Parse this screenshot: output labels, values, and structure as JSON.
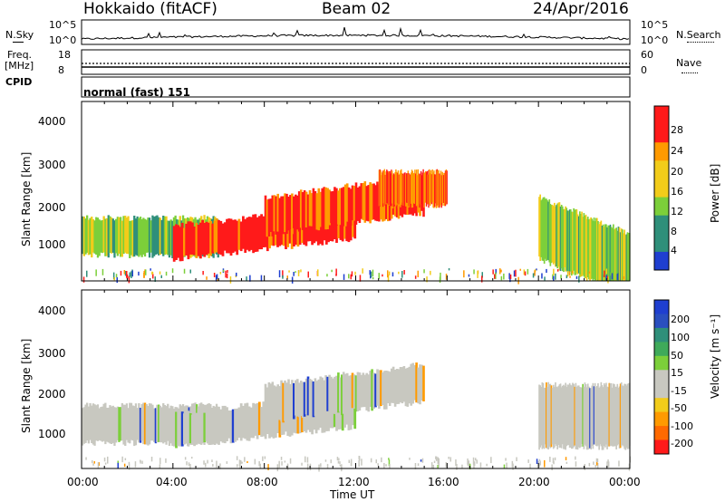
{
  "header": {
    "site_title": "Hokkaido (fitACF)",
    "beam_label": "Beam 02",
    "date_label": "24/Apr/2016"
  },
  "noise_panel": {
    "left_label": "N.Sky",
    "right_label": "N.Search",
    "left_ticks": [
      "10^5",
      "10^0"
    ],
    "right_ticks": [
      "10^5",
      "10^0"
    ]
  },
  "freq_panel": {
    "left_label_1": "Freq.",
    "left_label_2": "[MHz]",
    "right_label": "Nave",
    "left_ticks": [
      "18",
      "8"
    ],
    "right_ticks": [
      "60",
      "0"
    ]
  },
  "cpid_panel": {
    "label": "CPID",
    "text": "normal (fast) 151"
  },
  "colors": {
    "red": "#ff1a1a",
    "orange": "#ff9a00",
    "yellow": "#f2cc1a",
    "green": "#7ccf3a",
    "teal": "#2f8f7a",
    "blue": "#1f3fd0",
    "grey": "#c8c8c0"
  },
  "chart_data": [
    {
      "type": "heatmap",
      "title": "",
      "ylabel": "Slant Range [km]",
      "xlabel": "",
      "x_ticks": [
        "00:00",
        "04:00",
        "08:00",
        "12:00",
        "16:00",
        "20:00",
        "00:00"
      ],
      "y_ticks": [
        "1000",
        "2000",
        "3000",
        "4000"
      ],
      "ylim": [
        180,
        4500
      ],
      "xlim_hours": [
        0,
        24
      ],
      "colorbar": {
        "label": "Power [dB]",
        "ticks": [
          "28",
          "24",
          "20",
          "16",
          "12",
          "8",
          "4"
        ],
        "range": [
          0,
          30
        ]
      },
      "regions": [
        {
          "t0": 0,
          "t1": 6,
          "r0": 800,
          "r1": 1700,
          "value": 14
        },
        {
          "t0": 4,
          "t1": 12,
          "r0": 700,
          "r1": 1500,
          "value": 27
        },
        {
          "t0": 8,
          "t1": 15,
          "r0": 1300,
          "r1": 2200,
          "value": 25
        },
        {
          "t0": 13,
          "t1": 16,
          "r0": 2000,
          "r1": 2800,
          "value": 24
        },
        {
          "t0": 20,
          "t1": 24,
          "r0": 700,
          "r1": 2200,
          "value": 15
        }
      ]
    },
    {
      "type": "heatmap",
      "title": "",
      "ylabel": "Slant Range [km]",
      "xlabel": "Time UT",
      "x_ticks": [
        "00:00",
        "04:00",
        "08:00",
        "12:00",
        "16:00",
        "20:00",
        "00:00"
      ],
      "y_ticks": [
        "1000",
        "2000",
        "3000",
        "4000"
      ],
      "ylim": [
        180,
        4500
      ],
      "xlim_hours": [
        0,
        24
      ],
      "colorbar": {
        "label": "Velocity [m s⁻¹]",
        "ticks": [
          "200",
          "100",
          "50",
          "15",
          "-15",
          "-50",
          "-100",
          "-200"
        ],
        "range": [
          -250,
          250
        ]
      },
      "regions": [
        {
          "t0": 0,
          "t1": 6,
          "r0": 800,
          "r1": 1700,
          "value": 0
        },
        {
          "t0": 4,
          "t1": 12,
          "r0": 700,
          "r1": 1500,
          "value": 0
        },
        {
          "t0": 8,
          "t1": 15,
          "r0": 1300,
          "r1": 2200,
          "value": 0
        },
        {
          "t0": 20,
          "t1": 24,
          "r0": 700,
          "r1": 2200,
          "value": 0
        }
      ]
    }
  ]
}
